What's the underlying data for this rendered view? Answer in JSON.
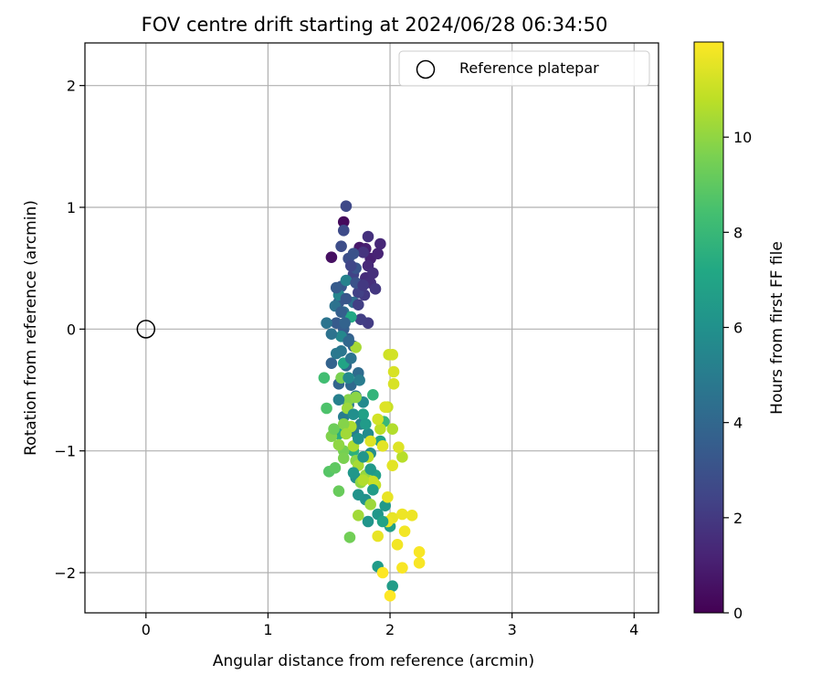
{
  "chart_data": {
    "type": "scatter",
    "title": "FOV centre drift starting at 2024/06/28 06:34:50",
    "xlabel": "Angular distance from reference (arcmin)",
    "ylabel": "Rotation from reference (arcmin)",
    "xlim": [
      -0.5,
      4.2
    ],
    "ylim": [
      -2.33,
      2.35
    ],
    "xticks": [
      0,
      1,
      2,
      3,
      4
    ],
    "xtick_labels": [
      "0",
      "1",
      "2",
      "3",
      "4"
    ],
    "yticks": [
      -2,
      -1,
      0,
      1,
      2
    ],
    "ytick_labels": [
      "−2",
      "−1",
      "0",
      "1",
      "2"
    ],
    "grid": true,
    "legend": {
      "placement": "top-right",
      "entries": [
        "Reference platepar"
      ]
    },
    "reference_point": {
      "x": 0,
      "y": 0,
      "marker": "open-circle"
    },
    "colormap": "viridis",
    "colorbar": {
      "label": "Hours from first FF file",
      "range": [
        0,
        12
      ],
      "ticks": [
        0,
        2,
        4,
        6,
        8,
        10
      ],
      "tick_labels": [
        "0",
        "2",
        "4",
        "6",
        "8",
        "10"
      ]
    },
    "points": [
      {
        "x": 1.62,
        "y": 0.88,
        "h": 0.3
      },
      {
        "x": 1.52,
        "y": 0.59,
        "h": 0.5
      },
      {
        "x": 1.75,
        "y": 0.67,
        "h": 0.8
      },
      {
        "x": 1.8,
        "y": 0.66,
        "h": 1.0
      },
      {
        "x": 1.84,
        "y": 0.58,
        "h": 1.1
      },
      {
        "x": 1.9,
        "y": 0.62,
        "h": 1.2
      },
      {
        "x": 1.92,
        "y": 0.7,
        "h": 1.3
      },
      {
        "x": 1.82,
        "y": 0.52,
        "h": 1.4
      },
      {
        "x": 1.8,
        "y": 0.42,
        "h": 1.5
      },
      {
        "x": 1.84,
        "y": 0.38,
        "h": 1.6
      },
      {
        "x": 1.82,
        "y": 0.76,
        "h": 1.7
      },
      {
        "x": 1.78,
        "y": 0.63,
        "h": 1.8
      },
      {
        "x": 1.88,
        "y": 0.33,
        "h": 1.9
      },
      {
        "x": 1.79,
        "y": 0.28,
        "h": 2.0
      },
      {
        "x": 1.82,
        "y": 0.05,
        "h": 2.1
      },
      {
        "x": 1.76,
        "y": 0.08,
        "h": 2.2
      },
      {
        "x": 1.74,
        "y": 0.3,
        "h": 2.3
      },
      {
        "x": 1.7,
        "y": 0.45,
        "h": 2.4
      },
      {
        "x": 1.64,
        "y": 1.01,
        "h": 2.6
      },
      {
        "x": 1.62,
        "y": 0.81,
        "h": 2.7
      },
      {
        "x": 1.6,
        "y": 0.68,
        "h": 2.8
      },
      {
        "x": 1.66,
        "y": 0.58,
        "h": 2.9
      },
      {
        "x": 1.7,
        "y": 0.62,
        "h": 3.0
      },
      {
        "x": 1.72,
        "y": 0.5,
        "h": 3.1
      },
      {
        "x": 1.6,
        "y": 0.35,
        "h": 3.2
      },
      {
        "x": 1.58,
        "y": 0.22,
        "h": 3.3
      },
      {
        "x": 1.56,
        "y": 0.05,
        "h": 3.4
      },
      {
        "x": 1.62,
        "y": 0.0,
        "h": 3.5
      },
      {
        "x": 1.66,
        "y": -0.08,
        "h": 3.6
      },
      {
        "x": 1.7,
        "y": -0.14,
        "h": 3.7
      },
      {
        "x": 1.52,
        "y": -0.28,
        "h": 3.8
      },
      {
        "x": 1.58,
        "y": -0.45,
        "h": 3.9
      },
      {
        "x": 1.64,
        "y": -0.3,
        "h": 4.0
      },
      {
        "x": 1.68,
        "y": -0.46,
        "h": 4.1
      },
      {
        "x": 1.74,
        "y": -0.36,
        "h": 4.2
      },
      {
        "x": 1.7,
        "y": 0.22,
        "h": 4.3
      },
      {
        "x": 1.62,
        "y": 0.14,
        "h": 4.4
      },
      {
        "x": 1.55,
        "y": 0.19,
        "h": 4.5
      },
      {
        "x": 1.48,
        "y": 0.05,
        "h": 4.6
      },
      {
        "x": 1.6,
        "y": -0.18,
        "h": 4.7
      },
      {
        "x": 1.66,
        "y": -0.62,
        "h": 4.8
      },
      {
        "x": 1.72,
        "y": -0.55,
        "h": 4.9
      },
      {
        "x": 1.62,
        "y": -0.72,
        "h": 5.0
      },
      {
        "x": 1.7,
        "y": -0.84,
        "h": 5.1
      },
      {
        "x": 1.76,
        "y": -0.78,
        "h": 5.2
      },
      {
        "x": 1.64,
        "y": 0.4,
        "h": 5.3
      },
      {
        "x": 1.58,
        "y": 0.28,
        "h": 5.4
      },
      {
        "x": 1.6,
        "y": -0.06,
        "h": 5.5
      },
      {
        "x": 1.78,
        "y": -0.6,
        "h": 5.6
      },
      {
        "x": 1.82,
        "y": -0.86,
        "h": 5.7
      },
      {
        "x": 1.84,
        "y": -1.02,
        "h": 5.8
      },
      {
        "x": 1.72,
        "y": -1.22,
        "h": 5.9
      },
      {
        "x": 1.8,
        "y": -1.4,
        "h": 6.0
      },
      {
        "x": 1.74,
        "y": -1.36,
        "h": 6.1
      },
      {
        "x": 1.82,
        "y": -1.58,
        "h": 6.2
      },
      {
        "x": 1.9,
        "y": -1.52,
        "h": 6.3
      },
      {
        "x": 1.96,
        "y": -1.45,
        "h": 6.4
      },
      {
        "x": 1.9,
        "y": -1.95,
        "h": 6.5
      },
      {
        "x": 2.02,
        "y": -2.11,
        "h": 6.6
      },
      {
        "x": 2.0,
        "y": -1.62,
        "h": 6.7
      },
      {
        "x": 1.88,
        "y": -1.2,
        "h": 6.8
      },
      {
        "x": 1.92,
        "y": -0.92,
        "h": 6.9
      },
      {
        "x": 1.62,
        "y": -0.28,
        "h": 7.0
      },
      {
        "x": 1.68,
        "y": 0.1,
        "h": 7.2
      },
      {
        "x": 1.58,
        "y": -0.86,
        "h": 7.4
      },
      {
        "x": 1.7,
        "y": -1.0,
        "h": 7.6
      },
      {
        "x": 1.86,
        "y": -0.54,
        "h": 7.8
      },
      {
        "x": 1.95,
        "y": -0.76,
        "h": 8.0
      },
      {
        "x": 1.46,
        "y": -0.4,
        "h": 8.3
      },
      {
        "x": 1.48,
        "y": -0.65,
        "h": 8.6
      },
      {
        "x": 1.5,
        "y": -1.17,
        "h": 8.8
      },
      {
        "x": 1.55,
        "y": -1.14,
        "h": 9.0
      },
      {
        "x": 1.58,
        "y": -1.33,
        "h": 9.2
      },
      {
        "x": 1.67,
        "y": -1.71,
        "h": 9.4
      },
      {
        "x": 1.62,
        "y": -1.0,
        "h": 9.5
      },
      {
        "x": 1.6,
        "y": -0.4,
        "h": 9.6
      },
      {
        "x": 1.52,
        "y": -0.88,
        "h": 9.7
      },
      {
        "x": 1.66,
        "y": -0.58,
        "h": 9.8
      },
      {
        "x": 1.72,
        "y": -1.08,
        "h": 9.9
      },
      {
        "x": 1.76,
        "y": -1.26,
        "h": 10.0
      },
      {
        "x": 1.8,
        "y": -1.2,
        "h": 10.1
      },
      {
        "x": 1.84,
        "y": -1.44,
        "h": 10.2
      },
      {
        "x": 1.74,
        "y": -1.53,
        "h": 10.3
      },
      {
        "x": 1.72,
        "y": -0.15,
        "h": 10.4
      },
      {
        "x": 1.68,
        "y": -0.8,
        "h": 10.5
      },
      {
        "x": 2.02,
        "y": -0.82,
        "h": 10.6
      },
      {
        "x": 2.1,
        "y": -1.05,
        "h": 10.7
      },
      {
        "x": 1.92,
        "y": -0.82,
        "h": 10.8
      },
      {
        "x": 1.88,
        "y": -1.28,
        "h": 10.9
      },
      {
        "x": 1.98,
        "y": -0.64,
        "h": 11.0
      },
      {
        "x": 1.99,
        "y": -0.21,
        "h": 11.1
      },
      {
        "x": 2.02,
        "y": -0.21,
        "h": 11.2
      },
      {
        "x": 2.03,
        "y": -0.35,
        "h": 11.3
      },
      {
        "x": 2.03,
        "y": -0.45,
        "h": 11.3
      },
      {
        "x": 1.96,
        "y": -0.64,
        "h": 11.4
      },
      {
        "x": 2.07,
        "y": -0.97,
        "h": 11.4
      },
      {
        "x": 1.94,
        "y": -0.96,
        "h": 11.5
      },
      {
        "x": 2.02,
        "y": -1.12,
        "h": 11.5
      },
      {
        "x": 1.98,
        "y": -1.38,
        "h": 11.6
      },
      {
        "x": 2.02,
        "y": -1.55,
        "h": 11.6
      },
      {
        "x": 2.1,
        "y": -1.52,
        "h": 11.7
      },
      {
        "x": 2.18,
        "y": -1.53,
        "h": 11.7
      },
      {
        "x": 2.12,
        "y": -1.66,
        "h": 11.8
      },
      {
        "x": 2.06,
        "y": -1.77,
        "h": 11.8
      },
      {
        "x": 2.24,
        "y": -1.83,
        "h": 11.9
      },
      {
        "x": 2.24,
        "y": -1.92,
        "h": 11.9
      },
      {
        "x": 2.1,
        "y": -1.96,
        "h": 11.9
      },
      {
        "x": 1.94,
        "y": -2.0,
        "h": 12.0
      },
      {
        "x": 2.0,
        "y": -2.19,
        "h": 12.0
      },
      {
        "x": 1.84,
        "y": -0.92,
        "h": 11.4
      },
      {
        "x": 1.9,
        "y": -0.74,
        "h": 11.2
      },
      {
        "x": 1.86,
        "y": -1.25,
        "h": 11.0
      },
      {
        "x": 1.9,
        "y": -1.7,
        "h": 11.6
      },
      {
        "x": 1.98,
        "y": -1.58,
        "h": 11.7
      },
      {
        "x": 1.82,
        "y": -1.05,
        "h": 10.8
      },
      {
        "x": 1.78,
        "y": -1.24,
        "h": 10.6
      },
      {
        "x": 1.72,
        "y": -0.56,
        "h": 9.9
      },
      {
        "x": 1.65,
        "y": -0.65,
        "h": 10.2
      },
      {
        "x": 1.62,
        "y": -0.78,
        "h": 9.8
      },
      {
        "x": 1.58,
        "y": -0.95,
        "h": 10.0
      },
      {
        "x": 1.64,
        "y": -0.86,
        "h": 10.3
      },
      {
        "x": 1.54,
        "y": -0.82,
        "h": 9.3
      },
      {
        "x": 1.62,
        "y": -1.06,
        "h": 9.6
      },
      {
        "x": 1.7,
        "y": -0.96,
        "h": 10.5
      },
      {
        "x": 1.74,
        "y": -1.12,
        "h": 10.4
      },
      {
        "x": 1.78,
        "y": -0.7,
        "h": 6.8
      },
      {
        "x": 1.8,
        "y": -0.78,
        "h": 6.5
      },
      {
        "x": 1.75,
        "y": -0.42,
        "h": 5.0
      },
      {
        "x": 1.68,
        "y": -0.24,
        "h": 4.6
      },
      {
        "x": 1.66,
        "y": -0.1,
        "h": 4.0
      },
      {
        "x": 1.63,
        "y": 0.05,
        "h": 3.8
      },
      {
        "x": 1.6,
        "y": 0.14,
        "h": 3.6
      },
      {
        "x": 1.56,
        "y": 0.34,
        "h": 3.4
      },
      {
        "x": 1.64,
        "y": 0.25,
        "h": 3.2
      },
      {
        "x": 1.72,
        "y": 0.38,
        "h": 3.0
      },
      {
        "x": 1.68,
        "y": 0.52,
        "h": 2.5
      },
      {
        "x": 1.74,
        "y": 0.2,
        "h": 2.2
      },
      {
        "x": 1.78,
        "y": 0.36,
        "h": 2.0
      },
      {
        "x": 1.86,
        "y": 0.46,
        "h": 1.6
      },
      {
        "x": 1.66,
        "y": -0.4,
        "h": 5.6
      },
      {
        "x": 1.7,
        "y": -0.7,
        "h": 5.9
      },
      {
        "x": 1.74,
        "y": -0.9,
        "h": 6.0
      },
      {
        "x": 1.78,
        "y": -1.05,
        "h": 6.2
      },
      {
        "x": 1.84,
        "y": -1.15,
        "h": 6.4
      },
      {
        "x": 1.86,
        "y": -1.32,
        "h": 6.6
      },
      {
        "x": 1.94,
        "y": -1.58,
        "h": 6.9
      },
      {
        "x": 1.7,
        "y": -1.18,
        "h": 6.3
      },
      {
        "x": 1.56,
        "y": -0.2,
        "h": 4.8
      },
      {
        "x": 1.52,
        "y": -0.04,
        "h": 4.5
      },
      {
        "x": 1.58,
        "y": -0.58,
        "h": 5.2
      }
    ]
  }
}
